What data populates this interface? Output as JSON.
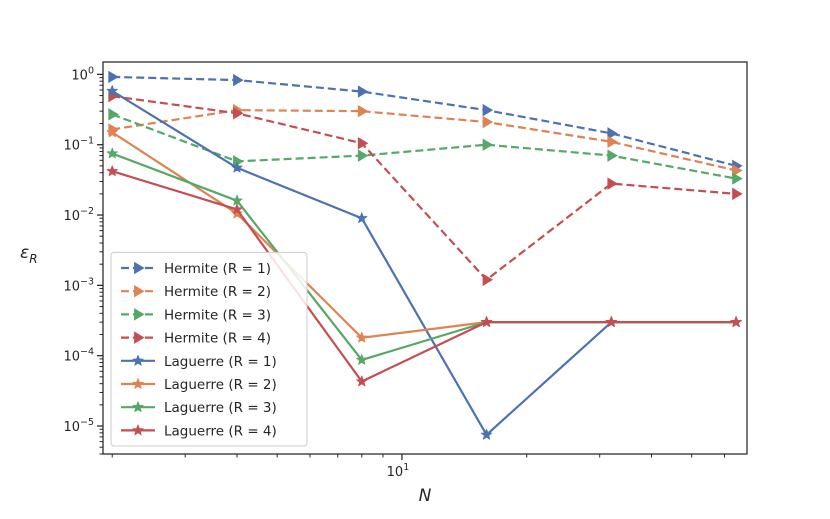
{
  "chart_data": {
    "type": "line",
    "xscale": "log",
    "yscale": "log",
    "xlabel": "N",
    "ylabel": "ε_R",
    "xlim": [
      1.9,
      68
    ],
    "ylim": [
      4e-06,
      1.5
    ],
    "x": [
      2,
      4,
      8,
      16,
      32,
      64
    ],
    "x_major_ticks": [
      {
        "value": 10,
        "base": "10",
        "exp": "1"
      }
    ],
    "y_major_ticks": [
      {
        "value": 1,
        "base": "10",
        "exp": "0"
      },
      {
        "value": 0.1,
        "base": "10",
        "exp": "−1"
      },
      {
        "value": 0.01,
        "base": "10",
        "exp": "−2"
      },
      {
        "value": 0.001,
        "base": "10",
        "exp": "−3"
      },
      {
        "value": 0.0001,
        "base": "10",
        "exp": "−4"
      },
      {
        "value": 1e-05,
        "base": "10",
        "exp": "−5"
      }
    ],
    "legend_position": "lower-left",
    "series": [
      {
        "name": "Hermite (R = 1)",
        "color": "#4c72b0",
        "dash": "dashed",
        "marker": "triangle-right",
        "values": [
          0.92,
          0.83,
          0.57,
          0.31,
          0.145,
          0.05
        ]
      },
      {
        "name": "Hermite (R = 2)",
        "color": "#dd8452",
        "dash": "dashed",
        "marker": "triangle-right",
        "values": [
          0.165,
          0.31,
          0.3,
          0.21,
          0.11,
          0.043
        ]
      },
      {
        "name": "Hermite (R = 3)",
        "color": "#55a868",
        "dash": "dashed",
        "marker": "triangle-right",
        "values": [
          0.27,
          0.058,
          0.07,
          0.1,
          0.07,
          0.033
        ]
      },
      {
        "name": "Hermite (R = 4)",
        "color": "#c44e52",
        "dash": "dashed",
        "marker": "triangle-right",
        "values": [
          0.49,
          0.28,
          0.105,
          0.0012,
          0.028,
          0.02
        ]
      },
      {
        "name": "Laguerre (R = 1)",
        "color": "#4c72b0",
        "dash": "solid",
        "marker": "star",
        "values": [
          0.58,
          0.047,
          0.009,
          7.5e-06,
          0.0003,
          0.0003
        ]
      },
      {
        "name": "Laguerre (R = 2)",
        "color": "#dd8452",
        "dash": "solid",
        "marker": "star",
        "values": [
          0.15,
          0.0105,
          0.00018,
          0.0003,
          0.0003,
          0.0003
        ]
      },
      {
        "name": "Laguerre (R = 3)",
        "color": "#55a868",
        "dash": "solid",
        "marker": "star",
        "values": [
          0.075,
          0.016,
          8.7e-05,
          0.0003,
          0.0003,
          0.0003
        ]
      },
      {
        "name": "Laguerre (R = 4)",
        "color": "#c44e52",
        "dash": "solid",
        "marker": "star",
        "values": [
          0.042,
          0.012,
          4.3e-05,
          0.0003,
          0.0003,
          0.0003
        ]
      }
    ]
  }
}
